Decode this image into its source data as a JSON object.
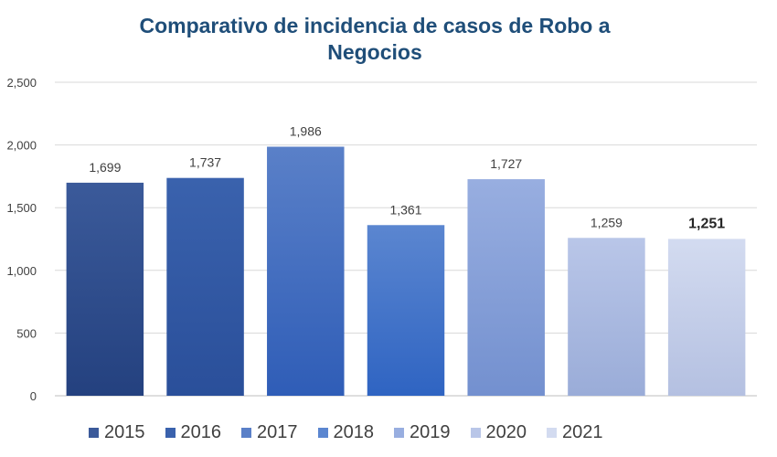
{
  "chart_data": {
    "type": "bar",
    "title": "Comparativo de incidencia de casos de Robo a Negocios",
    "categories": [
      "2015",
      "2016",
      "2017",
      "2018",
      "2019",
      "2020",
      "2021"
    ],
    "values": [
      1699,
      1737,
      1986,
      1361,
      1727,
      1259,
      1251
    ],
    "data_labels": [
      "1,699",
      "1,737",
      "1,986",
      "1,361",
      "1,727",
      "1,259",
      "1,251"
    ],
    "highlight_label_index": 6,
    "ylim": [
      0,
      2500
    ],
    "yticks": [
      0,
      500,
      1000,
      1500,
      2000,
      2500
    ],
    "ytick_labels": [
      "0",
      "500",
      "1,000",
      "1,500",
      "2,000",
      "2,500"
    ],
    "grid": true,
    "legend_position": "bottom",
    "colors": [
      [
        "#24417f",
        "#3b5a9a"
      ],
      [
        "#2a4f9a",
        "#3a62ad"
      ],
      [
        "#2f5db7",
        "#5a80c8"
      ],
      [
        "#2f64c2",
        "#5b86d0"
      ],
      [
        "#7390cf",
        "#98aee0"
      ],
      [
        "#9aacd8",
        "#b9c6e8"
      ],
      [
        "#b4c0e1",
        "#d3dbf0"
      ]
    ]
  }
}
